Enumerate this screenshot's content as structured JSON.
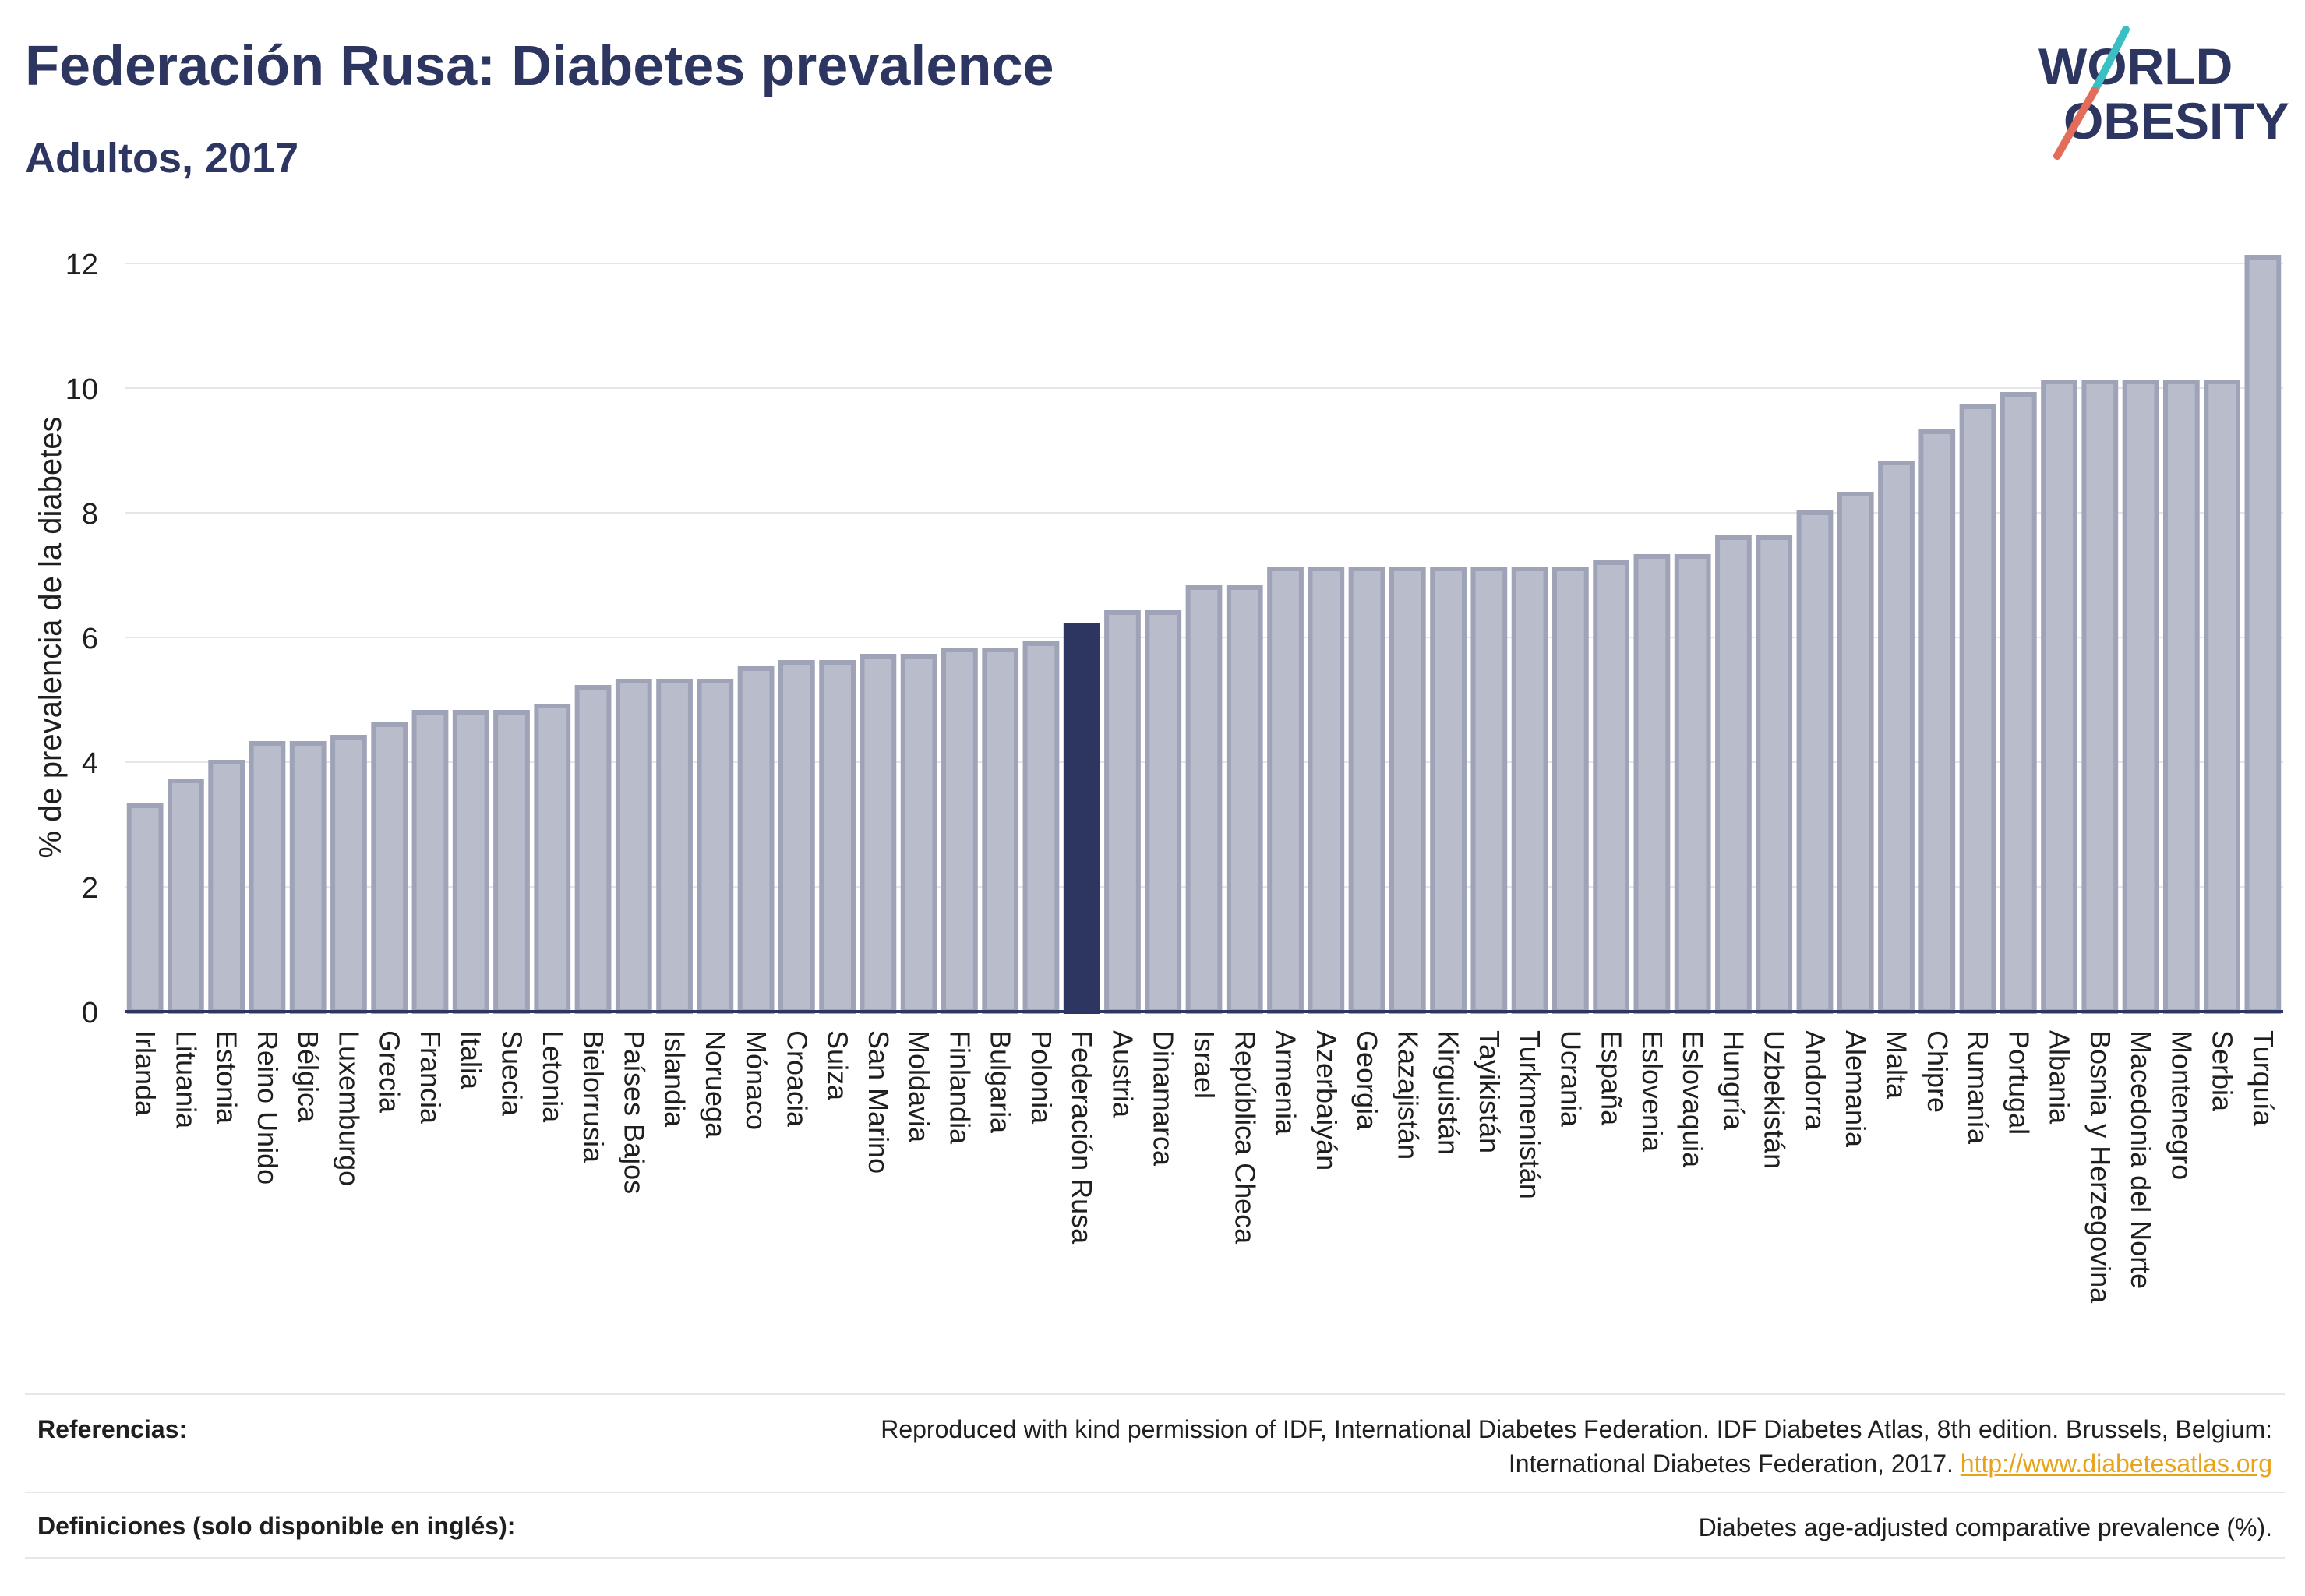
{
  "header": {
    "title": "Federación Rusa: Diabetes prevalence",
    "subtitle": "Adultos, 2017"
  },
  "logo": {
    "line1": "WORLD",
    "line2": "OBESITY"
  },
  "chart_data": {
    "type": "bar",
    "ylabel": "% de prevalencia de la diabetes",
    "ylim": [
      0,
      12.5
    ],
    "yticks": [
      0,
      2,
      4,
      6,
      8,
      10,
      12
    ],
    "grid": true,
    "highlight": "Federación Rusa",
    "colors": {
      "bar": "#b8bccb",
      "bar_border": "#9ea3b8",
      "highlight": "#2d3561",
      "grid": "#e6e6ea",
      "axis": "#2d3561"
    },
    "categories": [
      "Irlanda",
      "Lituania",
      "Estonia",
      "Reino Unido",
      "Bélgica",
      "Luxemburgo",
      "Grecia",
      "Francia",
      "Italia",
      "Suecia",
      "Letonia",
      "Bielorrusia",
      "Países Bajos",
      "Islandia",
      "Noruega",
      "Mónaco",
      "Croacia",
      "Suiza",
      "San Marino",
      "Moldavia",
      "Finlandia",
      "Bulgaria",
      "Polonia",
      "Federación Rusa",
      "Austria",
      "Dinamarca",
      "Israel",
      "República Checa",
      "Armenia",
      "Azerbaiyán",
      "Georgia",
      "Kazajistán",
      "Kirguistán",
      "Tayikistán",
      "Turkmenistán",
      "Ucrania",
      "España",
      "Eslovenia",
      "Eslovaquia",
      "Hungría",
      "Uzbekistán",
      "Andorra",
      "Alemania",
      "Malta",
      "Chipre",
      "Rumanía",
      "Portugal",
      "Albania",
      "Bosnia y Herzegovina",
      "Macedonia del Norte",
      "Montenegro",
      "Serbia",
      "Turquía"
    ],
    "values": [
      3.3,
      3.7,
      4.0,
      4.3,
      4.3,
      4.4,
      4.6,
      4.8,
      4.8,
      4.8,
      4.9,
      5.2,
      5.3,
      5.3,
      5.3,
      5.5,
      5.6,
      5.6,
      5.7,
      5.7,
      5.8,
      5.8,
      5.9,
      6.2,
      6.4,
      6.4,
      6.8,
      6.8,
      7.1,
      7.1,
      7.1,
      7.1,
      7.1,
      7.1,
      7.1,
      7.1,
      7.2,
      7.3,
      7.3,
      7.6,
      7.6,
      8.0,
      8.3,
      8.8,
      9.3,
      9.7,
      9.9,
      10.1,
      10.1,
      10.1,
      10.1,
      10.1,
      12.1
    ]
  },
  "references": {
    "label": "Referencias:",
    "text": "Reproduced with kind permission of IDF, International Diabetes Federation. IDF Diabetes Atlas, 8th edition. Brussels, Belgium:",
    "text2": "International Diabetes Federation, 2017.",
    "link": "http://www.diabetesatlas.org"
  },
  "definitions": {
    "label": "Definiciones (solo disponible en inglés):",
    "text": "Diabetes age-adjusted comparative prevalence (%)."
  }
}
